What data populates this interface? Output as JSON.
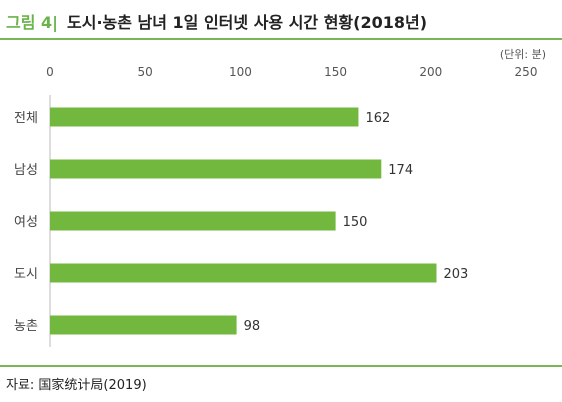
{
  "figure": {
    "label": "그림 4|",
    "title": "도시·농촌 남녀 1일 인터넷 사용 시간 현황(2018년)",
    "unit": "(단위: 분)",
    "source": "자료: 国家统计局(2019)"
  },
  "colors": {
    "bar": "#72b83f",
    "accent": "#6bb24a",
    "rule": "#7ab55a"
  },
  "chart_data": {
    "type": "bar",
    "orientation": "horizontal",
    "categories": [
      "전체",
      "남성",
      "여성",
      "도시",
      "농촌"
    ],
    "values": [
      162,
      174,
      150,
      203,
      98
    ],
    "value_labels": [
      "162",
      "174",
      "150",
      "203",
      "98"
    ],
    "xlim": [
      0,
      250
    ],
    "ticks": [
      0,
      50,
      100,
      150,
      200,
      250
    ],
    "tick_labels": [
      "0",
      "50",
      "100",
      "150",
      "200",
      "250"
    ],
    "grid": false,
    "legend": "none"
  }
}
